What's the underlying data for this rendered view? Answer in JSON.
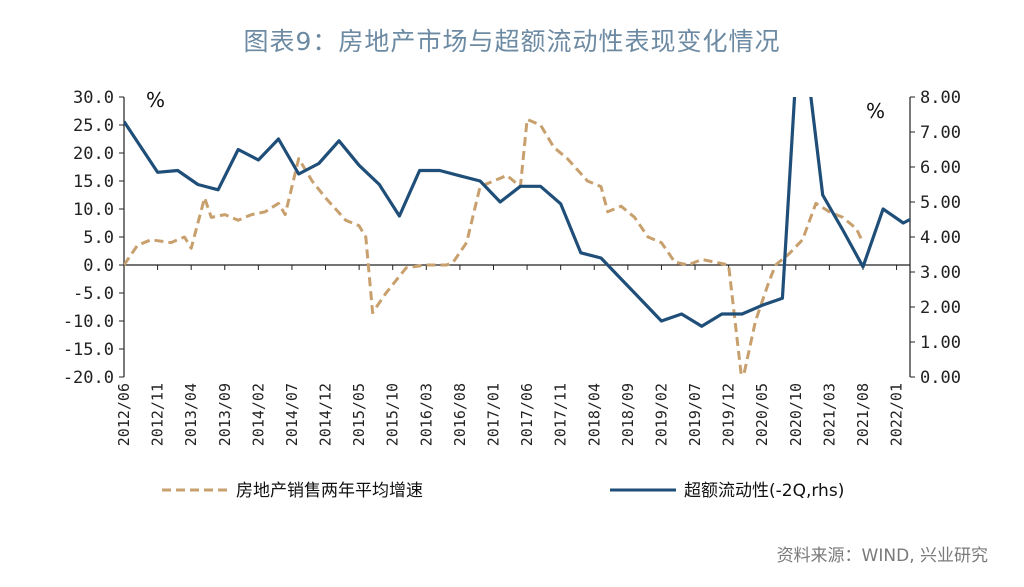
{
  "title": "图表9：房地产市场与超额流动性表现变化情况",
  "source": "资料来源：WIND, 兴业研究",
  "chart_data": {
    "type": "line",
    "title": "图表9：房地产市场与超额流动性表现变化情况",
    "left_unit": "%",
    "right_unit": "%",
    "left_axis": {
      "min": -20,
      "max": 30,
      "step": 5,
      "ticks": [
        "30.0",
        "25.0",
        "20.0",
        "15.0",
        "10.0",
        "5.0",
        "0.0",
        "-5.0",
        "-10.0",
        "-15.0",
        "-20.0"
      ]
    },
    "right_axis": {
      "min": 0,
      "max": 8,
      "step": 1,
      "ticks": [
        "8.00",
        "7.00",
        "6.00",
        "5.00",
        "4.00",
        "3.00",
        "2.00",
        "1.00",
        "0.00"
      ]
    },
    "x_axis": {
      "start": "2012/06",
      "end": "2022/03",
      "tick_labels": [
        "2012/06",
        "2012/11",
        "2013/04",
        "2013/09",
        "2014/02",
        "2014/07",
        "2014/12",
        "2015/05",
        "2015/10",
        "2016/03",
        "2016/08",
        "2017/01",
        "2017/06",
        "2017/11",
        "2018/04",
        "2018/09",
        "2019/02",
        "2019/07",
        "2019/12",
        "2020/05",
        "2020/10",
        "2021/03",
        "2021/08",
        "2022/01"
      ]
    },
    "grid": false,
    "legend_position": "bottom",
    "series": [
      {
        "name": "房地产销售两年平均增速",
        "axis": "left",
        "style": "dashed",
        "color": "#c8a06e",
        "points": [
          [
            "2012/06",
            0.0
          ],
          [
            "2012/08",
            3.5
          ],
          [
            "2012/10",
            4.5
          ],
          [
            "2013/01",
            4.0
          ],
          [
            "2013/03",
            5.0
          ],
          [
            "2013/04",
            3.0
          ],
          [
            "2013/06",
            12.0
          ],
          [
            "2013/07",
            8.5
          ],
          [
            "2013/09",
            9.0
          ],
          [
            "2013/11",
            8.0
          ],
          [
            "2014/01",
            9.0
          ],
          [
            "2014/03",
            9.5
          ],
          [
            "2014/05",
            11.0
          ],
          [
            "2014/06",
            9.0
          ],
          [
            "2014/08",
            19.0
          ],
          [
            "2014/10",
            15.0
          ],
          [
            "2014/12",
            12.0
          ],
          [
            "2015/03",
            8.0
          ],
          [
            "2015/05",
            7.0
          ],
          [
            "2015/06",
            5.0
          ],
          [
            "2015/07",
            -8.5
          ],
          [
            "2015/09",
            -5.0
          ],
          [
            "2015/12",
            -0.5
          ],
          [
            "2016/03",
            0.0
          ],
          [
            "2016/06",
            0.0
          ],
          [
            "2016/07",
            0.5
          ],
          [
            "2016/09",
            4.0
          ],
          [
            "2016/11",
            14.0
          ],
          [
            "2017/02",
            15.5
          ],
          [
            "2017/03",
            16.0
          ],
          [
            "2017/05",
            14.0
          ],
          [
            "2017/06",
            26.0
          ],
          [
            "2017/08",
            25.0
          ],
          [
            "2017/10",
            21.0
          ],
          [
            "2017/12",
            19.0
          ],
          [
            "2018/03",
            15.0
          ],
          [
            "2018/05",
            14.0
          ],
          [
            "2018/06",
            9.5
          ],
          [
            "2018/08",
            10.5
          ],
          [
            "2018/10",
            8.5
          ],
          [
            "2018/12",
            5.0
          ],
          [
            "2019/02",
            4.0
          ],
          [
            "2019/04",
            0.5
          ],
          [
            "2019/06",
            0.0
          ],
          [
            "2019/08",
            1.0
          ],
          [
            "2019/10",
            0.5
          ],
          [
            "2019/12",
            0.0
          ],
          [
            "2020/02",
            -21.0
          ],
          [
            "2020/04",
            -10.0
          ],
          [
            "2020/06",
            -3.0
          ],
          [
            "2020/07",
            0.0
          ],
          [
            "2020/09",
            2.0
          ],
          [
            "2020/11",
            4.5
          ],
          [
            "2021/01",
            11.0
          ],
          [
            "2021/03",
            9.5
          ],
          [
            "2021/05",
            8.5
          ],
          [
            "2021/07",
            6.5
          ],
          [
            "2021/08",
            4.0
          ]
        ]
      },
      {
        "name": "超额流动性(-2Q,rhs)",
        "axis": "right",
        "style": "solid",
        "color": "#1f4e79",
        "points": [
          [
            "2012/06",
            7.3
          ],
          [
            "2012/11",
            5.85
          ],
          [
            "2013/02",
            5.9
          ],
          [
            "2013/05",
            5.5
          ],
          [
            "2013/08",
            5.35
          ],
          [
            "2013/11",
            6.5
          ],
          [
            "2014/02",
            6.2
          ],
          [
            "2014/05",
            6.8
          ],
          [
            "2014/08",
            5.8
          ],
          [
            "2014/11",
            6.1
          ],
          [
            "2015/02",
            6.75
          ],
          [
            "2015/05",
            6.05
          ],
          [
            "2015/08",
            5.5
          ],
          [
            "2015/11",
            4.6
          ],
          [
            "2016/02",
            5.9
          ],
          [
            "2016/05",
            5.9
          ],
          [
            "2016/08",
            5.75
          ],
          [
            "2016/11",
            5.6
          ],
          [
            "2017/02",
            5.0
          ],
          [
            "2017/05",
            5.45
          ],
          [
            "2017/08",
            5.45
          ],
          [
            "2017/11",
            4.95
          ],
          [
            "2018/02",
            3.55
          ],
          [
            "2018/05",
            3.4
          ],
          [
            "2018/08",
            2.8
          ],
          [
            "2018/11",
            2.2
          ],
          [
            "2019/02",
            1.6
          ],
          [
            "2019/05",
            1.8
          ],
          [
            "2019/08",
            1.45
          ],
          [
            "2019/11",
            1.8
          ],
          [
            "2020/02",
            1.8
          ],
          [
            "2020/05",
            2.05
          ],
          [
            "2020/08",
            2.25
          ],
          [
            "2020/10",
            8.6
          ],
          [
            "2020/12",
            8.4
          ],
          [
            "2021/02",
            5.2
          ],
          [
            "2021/05",
            4.2
          ],
          [
            "2021/08",
            3.15
          ],
          [
            "2021/11",
            4.8
          ],
          [
            "2022/02",
            4.4
          ],
          [
            "2022/05",
            4.7
          ]
        ]
      }
    ]
  }
}
